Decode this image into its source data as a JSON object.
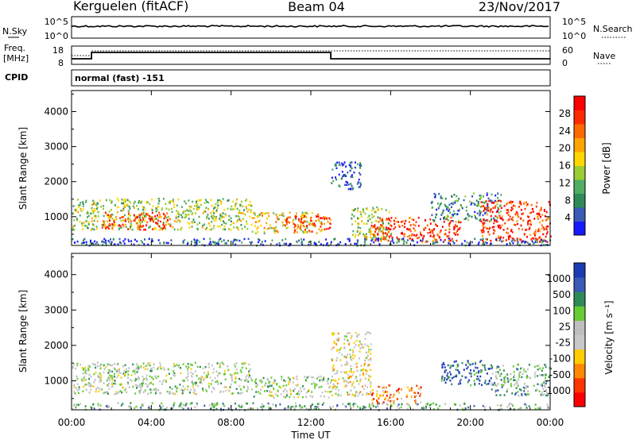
{
  "header": {
    "station": "Kerguelen (fitACF)",
    "beam": "Beam 04",
    "date": "23/Nov/2017"
  },
  "top_panels": {
    "nsky_label": "N.Sky",
    "nsky_ticks": [
      "10^5",
      "10^0"
    ],
    "nsearch_label": "N.Search",
    "nsearch_ticks": [
      "10^5",
      "10^0"
    ],
    "freq_label_1": "Freq.",
    "freq_label_2": "[MHz]",
    "freq_ticks": [
      "18",
      "8"
    ],
    "nave_label": "Nave",
    "nave_ticks": [
      "60",
      "0"
    ],
    "cpid_label": "CPID",
    "cpid_text": "normal (fast) -151"
  },
  "colors": {
    "power": [
      "#1818ff",
      "#3a5ab4",
      "#2e8b57",
      "#4fae62",
      "#9acd32",
      "#ffd700",
      "#ffa500",
      "#ff6a00",
      "#ff2a00",
      "#ff0000"
    ],
    "velocity": [
      "#ff0000",
      "#ff3300",
      "#ff8800",
      "#ffcc00",
      "#c8c8c8",
      "#bebebe",
      "#66cc33",
      "#2e8b57",
      "#3a5ab4",
      "#1c3cb4"
    ]
  },
  "chart_data": [
    {
      "type": "heatmap",
      "name": "power",
      "ylabel": "Slant Range [km]",
      "y_ticks": [
        1000,
        2000,
        3000,
        4000
      ],
      "ylim": [
        180,
        4600
      ],
      "x_ticks": [
        "00:00",
        "04:00",
        "08:00",
        "12:00",
        "16:00",
        "20:00",
        "00:00"
      ],
      "xlim_hours": [
        0,
        24
      ],
      "colorbar": {
        "label": "Power [dB]",
        "ticks": [
          "4",
          "8",
          "12",
          "16",
          "20",
          "24",
          "28"
        ]
      },
      "scatter_regions": [
        {
          "t": [
            0.0,
            9.0
          ],
          "r": [
            650,
            1550
          ],
          "level": 4
        },
        {
          "t": [
            1.5,
            5.0
          ],
          "r": [
            650,
            1150
          ],
          "level": 8
        },
        {
          "t": [
            9.0,
            12.5
          ],
          "r": [
            550,
            1150
          ],
          "level": 5
        },
        {
          "t": [
            10.5,
            13.0
          ],
          "r": [
            600,
            1050
          ],
          "level": 8
        },
        {
          "t": [
            13.0,
            14.5
          ],
          "r": [
            1800,
            2600
          ],
          "level": 1
        },
        {
          "t": [
            14.0,
            16.0
          ],
          "r": [
            350,
            1300
          ],
          "level": 4
        },
        {
          "t": [
            15.0,
            19.5
          ],
          "r": [
            300,
            1000
          ],
          "level": 8
        },
        {
          "t": [
            18.0,
            21.5
          ],
          "r": [
            900,
            1700
          ],
          "level": 2
        },
        {
          "t": [
            20.5,
            24.0
          ],
          "r": [
            300,
            1500
          ],
          "level": 8
        },
        {
          "t": [
            0.0,
            24.0
          ],
          "r": [
            200,
            400
          ],
          "level": 1
        }
      ]
    },
    {
      "type": "heatmap",
      "name": "velocity",
      "ylabel": "Slant Range [km]",
      "y_ticks": [
        1000,
        2000,
        3000,
        4000
      ],
      "ylim": [
        180,
        4600
      ],
      "x_ticks": [
        "00:00",
        "04:00",
        "08:00",
        "12:00",
        "16:00",
        "20:00",
        "00:00"
      ],
      "xlim_hours": [
        0,
        24
      ],
      "xlabel": "Time UT",
      "colorbar": {
        "label": "Velocity [m s⁻¹]",
        "ticks": [
          "-1000",
          "-500",
          "-100",
          "-25",
          "25",
          "100",
          "500",
          "1000"
        ]
      },
      "scatter_regions": [
        {
          "t": [
            0.0,
            9.0
          ],
          "r": [
            650,
            1550
          ],
          "level": 5
        },
        {
          "t": [
            9.0,
            13.0
          ],
          "r": [
            550,
            1150
          ],
          "level": 5
        },
        {
          "t": [
            13.0,
            15.0
          ],
          "r": [
            600,
            2400
          ],
          "level": 4
        },
        {
          "t": [
            15.0,
            17.5
          ],
          "r": [
            350,
            900
          ],
          "level": 2
        },
        {
          "t": [
            18.5,
            21.0
          ],
          "r": [
            900,
            1600
          ],
          "level": 8
        },
        {
          "t": [
            21.0,
            24.0
          ],
          "r": [
            600,
            1500
          ],
          "level": 6
        },
        {
          "t": [
            0.0,
            24.0
          ],
          "r": [
            200,
            400
          ],
          "level": 6
        }
      ]
    }
  ]
}
